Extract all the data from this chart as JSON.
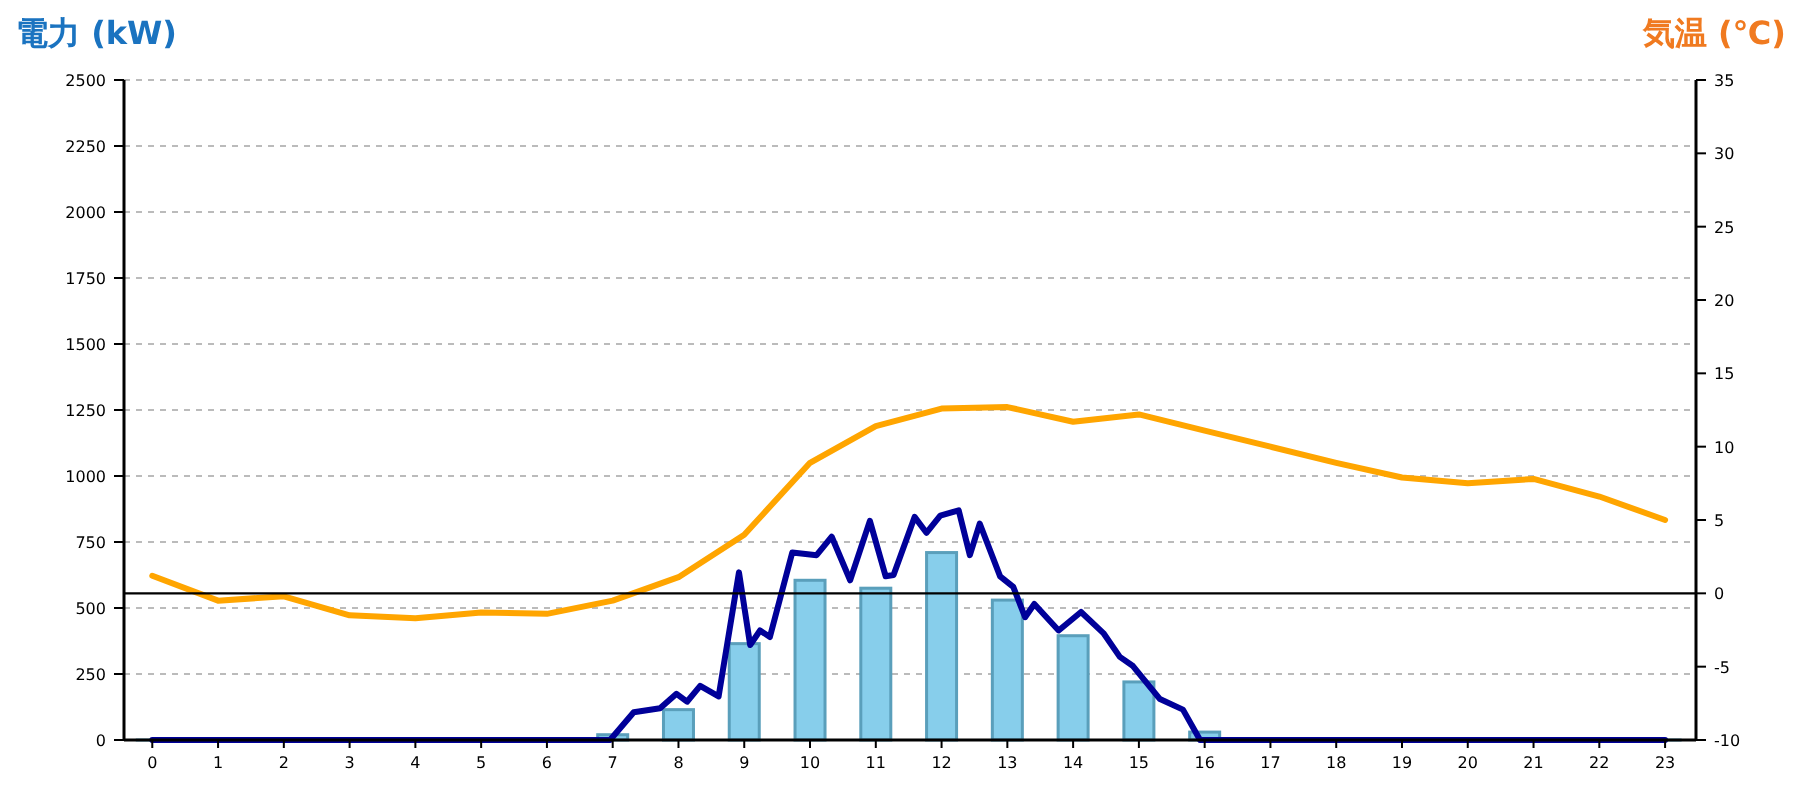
{
  "chart_data": {
    "type": "bar",
    "ylabel": "電力 (kW)",
    "y2label": "気温 (℃)",
    "xlim": [
      -0.43,
      23.47
    ],
    "xticks": [
      0,
      1,
      2,
      3,
      4,
      5,
      6,
      7,
      8,
      9,
      10,
      11,
      12,
      13,
      14,
      15,
      16,
      17,
      18,
      19,
      20,
      21,
      22,
      23
    ],
    "ylim": [
      0,
      2500
    ],
    "yticks": [
      0,
      250,
      500,
      750,
      1000,
      1250,
      1500,
      1750,
      2000,
      2250,
      2500
    ],
    "y2lim": [
      -10,
      35
    ],
    "y2ticks": [
      -10,
      -5,
      0,
      5,
      10,
      15,
      20,
      25,
      30,
      35
    ],
    "grid": "y",
    "ref_lines": [
      {
        "axis": "y2",
        "value": 0,
        "color": "#000000"
      }
    ],
    "series": [
      {
        "color": "#87ceeb",
        "x": [
          0,
          1,
          2,
          3,
          4,
          5,
          6,
          7,
          8,
          9,
          10,
          11,
          12,
          13,
          14,
          15,
          16,
          17,
          18,
          19,
          20,
          21,
          22,
          23
        ],
        "values": [
          0,
          0,
          0,
          0,
          0,
          0,
          0,
          20,
          115,
          365,
          605,
          575,
          710,
          530,
          395,
          220,
          30,
          0,
          0,
          0,
          0,
          0,
          0,
          0
        ]
      },
      {
        "type": "line",
        "color": "#000099",
        "x": [
          0,
          6.96,
          7.32,
          7.72,
          7.97,
          8.13,
          8.33,
          8.61,
          8.92,
          9.09,
          9.24,
          9.39,
          9.73,
          10.1,
          10.33,
          10.61,
          10.91,
          11.15,
          11.27,
          11.59,
          11.77,
          11.98,
          12.26,
          12.43,
          12.58,
          12.89,
          13.09,
          13.27,
          13.41,
          13.78,
          14.12,
          14.46,
          14.71,
          14.91,
          15.32,
          15.67,
          15.93,
          23
        ],
        "values": [
          0,
          0,
          105,
          120,
          175,
          145,
          205,
          165,
          635,
          360,
          415,
          390,
          710,
          700,
          770,
          605,
          830,
          620,
          625,
          845,
          785,
          850,
          870,
          700,
          820,
          620,
          580,
          465,
          515,
          415,
          485,
          405,
          315,
          280,
          155,
          115,
          0,
          0
        ]
      },
      {
        "type": "line",
        "axis": "y2",
        "color": "#ffa500",
        "x": [
          0,
          1,
          2,
          3,
          4,
          5,
          6,
          7,
          8,
          9,
          10,
          11,
          12,
          13,
          14,
          15,
          16,
          17,
          18,
          19,
          20,
          21,
          22,
          23
        ],
        "values": [
          1.2,
          -0.5,
          -0.2,
          -1.5,
          -1.7,
          -1.3,
          -1.4,
          -0.5,
          1.1,
          4.0,
          8.9,
          11.4,
          12.6,
          12.7,
          11.7,
          12.2,
          11.1,
          10.0,
          8.9,
          7.9,
          7.5,
          7.8,
          6.6,
          5.0
        ]
      }
    ]
  }
}
